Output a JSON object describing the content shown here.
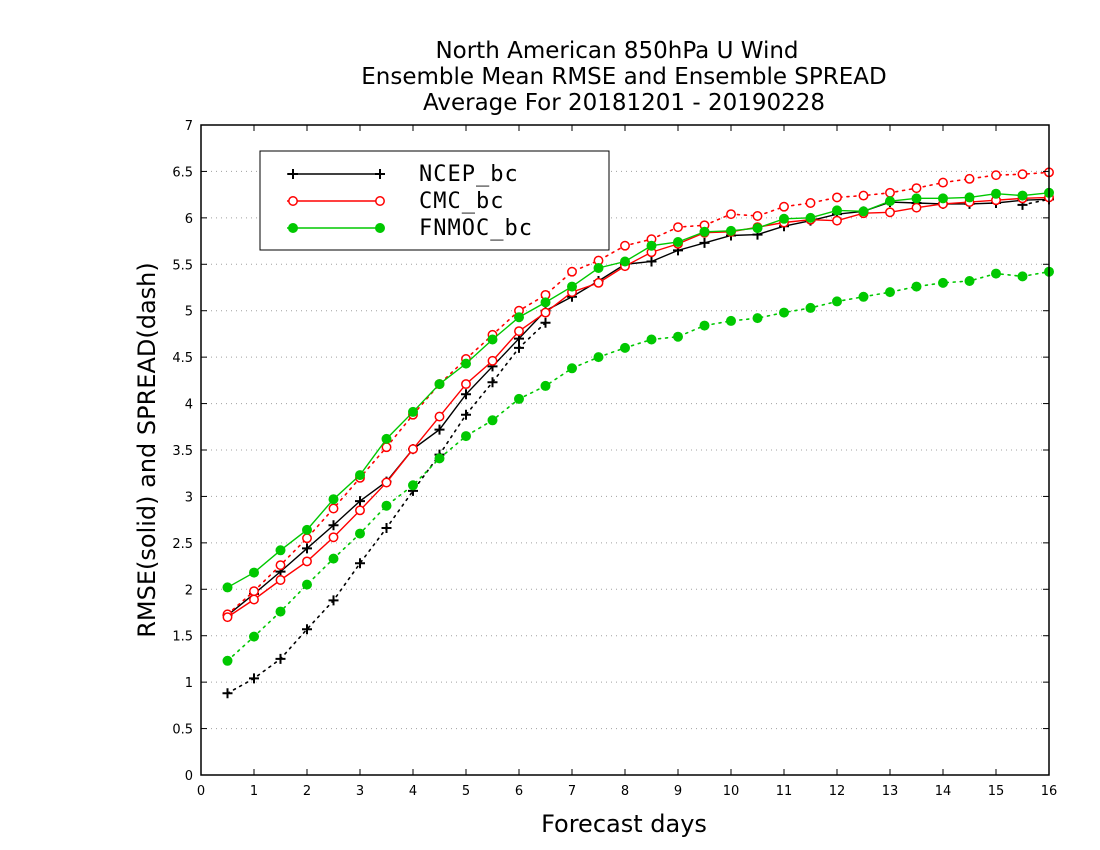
{
  "chart_data": {
    "type": "line",
    "title_lines": [
      "North American 850hPa U Wind",
      "Ensemble Mean RMSE and Ensemble SPREAD",
      "Average For 20181201 - 20190228"
    ],
    "xlabel": "Forecast days",
    "ylabel": "RMSE(solid) and SPREAD(dash)",
    "xlim": [
      0,
      16
    ],
    "ylim": [
      0,
      7
    ],
    "xticks": [
      "0",
      "1",
      "2",
      "3",
      "4",
      "5",
      "6",
      "7",
      "8",
      "9",
      "10",
      "11",
      "12",
      "13",
      "14",
      "15",
      "16"
    ],
    "yticks": [
      "0",
      "0.5",
      "1",
      "1.5",
      "2",
      "2.5",
      "3",
      "3.5",
      "4",
      "4.5",
      "5",
      "5.5",
      "6",
      "6.5",
      "7"
    ],
    "grid": "horizontal dotted",
    "legend_position": "top-left",
    "x": [
      0.5,
      1,
      1.5,
      2,
      2.5,
      3,
      3.5,
      4,
      4.5,
      5,
      5.5,
      6,
      6.5,
      7,
      7.5,
      8,
      8.5,
      9,
      9.5,
      10,
      10.5,
      11,
      11.5,
      12,
      12.5,
      13,
      13.5,
      14,
      14.5,
      15,
      15.5,
      16
    ],
    "series": [
      {
        "name": "NCEP_bc",
        "color": "#000000",
        "marker": "plus",
        "rmse": [
          1.72,
          1.95,
          2.19,
          2.44,
          2.69,
          2.95,
          3.16,
          3.51,
          3.72,
          4.1,
          4.4,
          4.7,
          5.0,
          5.15,
          5.32,
          5.5,
          5.53,
          5.65,
          5.73,
          5.81,
          5.82,
          5.91,
          5.97,
          6.04,
          6.07,
          6.17,
          6.16,
          6.15,
          6.15,
          6.16,
          6.19,
          6.2
        ],
        "spread": [
          0.88,
          1.04,
          1.25,
          1.57,
          1.88,
          2.28,
          2.66,
          3.06,
          3.45,
          3.88,
          4.23,
          4.6,
          4.87,
          null,
          null,
          null,
          null,
          null,
          null,
          null,
          null,
          null,
          null,
          null,
          null,
          null,
          null,
          null,
          null,
          null,
          6.14,
          6.2
        ]
      },
      {
        "name": "CMC_bc",
        "color": "#ff0000",
        "marker": "open-circle",
        "rmse": [
          1.7,
          1.89,
          2.1,
          2.3,
          2.56,
          2.85,
          3.15,
          3.51,
          3.86,
          4.21,
          4.46,
          4.78,
          4.98,
          5.2,
          5.3,
          5.48,
          5.63,
          5.72,
          5.84,
          5.85,
          5.9,
          5.95,
          5.98,
          5.97,
          6.05,
          6.06,
          6.11,
          6.15,
          6.17,
          6.19,
          6.21,
          6.22
        ],
        "spread": [
          1.73,
          1.98,
          2.26,
          2.55,
          2.87,
          3.2,
          3.53,
          3.88,
          4.21,
          4.48,
          4.74,
          5.0,
          5.17,
          5.42,
          5.54,
          5.7,
          5.77,
          5.9,
          5.92,
          6.04,
          6.02,
          6.12,
          6.16,
          6.22,
          6.24,
          6.27,
          6.32,
          6.38,
          6.42,
          6.46,
          6.47,
          6.49
        ]
      },
      {
        "name": "FNMOC_bc",
        "color": "#00c800",
        "marker": "filled-circle",
        "rmse": [
          2.02,
          2.18,
          2.42,
          2.64,
          2.97,
          3.23,
          3.62,
          3.91,
          4.21,
          4.43,
          4.69,
          4.93,
          5.09,
          5.26,
          5.46,
          5.53,
          5.7,
          5.74,
          5.85,
          5.86,
          5.89,
          5.99,
          6.0,
          6.08,
          6.07,
          6.18,
          6.21,
          6.21,
          6.22,
          6.26,
          6.24,
          6.27
        ],
        "spread": [
          1.23,
          1.49,
          1.76,
          2.05,
          2.33,
          2.6,
          2.9,
          3.12,
          3.41,
          3.65,
          3.82,
          4.05,
          4.19,
          4.38,
          4.5,
          4.6,
          4.69,
          4.72,
          4.84,
          4.89,
          4.92,
          4.98,
          5.03,
          5.1,
          5.15,
          5.2,
          5.26,
          5.3,
          5.32,
          5.4,
          5.37,
          5.42
        ]
      }
    ]
  }
}
